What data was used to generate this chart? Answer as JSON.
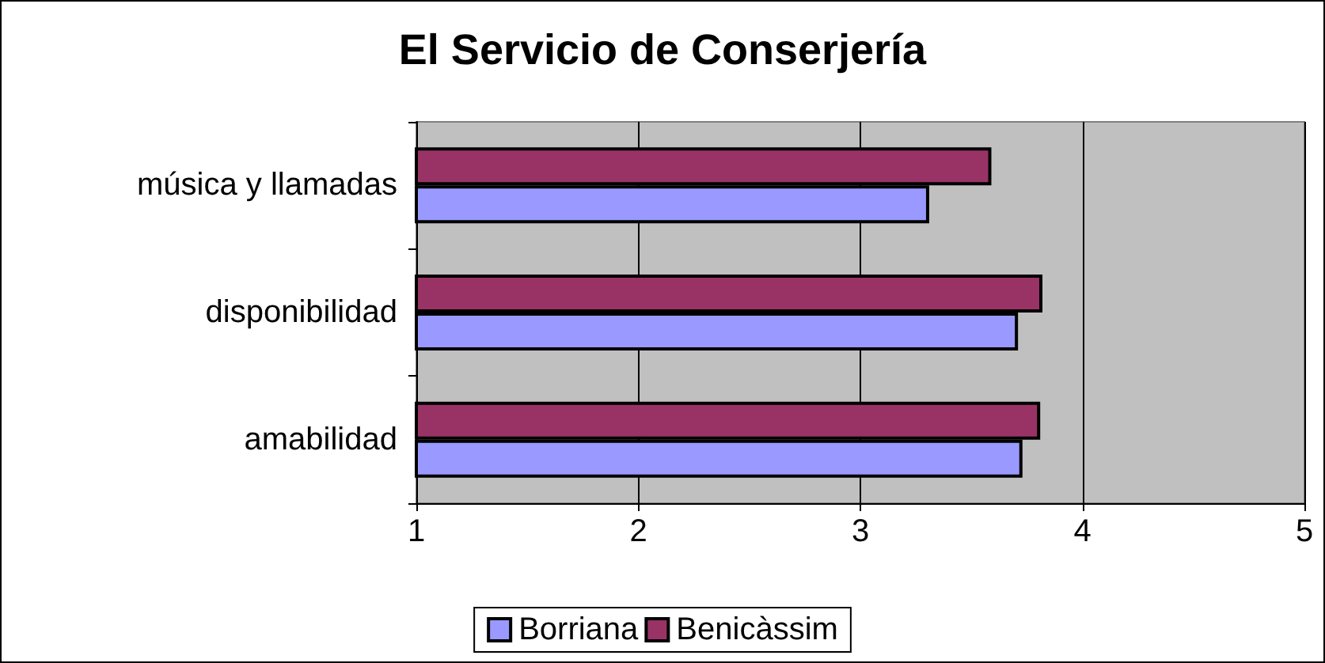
{
  "chart_data": {
    "type": "bar",
    "orientation": "horizontal",
    "title": "El Servicio de Conserjería",
    "categories": [
      "música y llamadas",
      "disponibilidad",
      "amabilidad"
    ],
    "series": [
      {
        "name": "Borriana",
        "color": "#9999ff",
        "values": [
          3.31,
          3.71,
          3.73
        ]
      },
      {
        "name": "Benicàssim",
        "color": "#993366",
        "values": [
          3.59,
          3.82,
          3.81
        ]
      }
    ],
    "xlim": [
      1,
      5
    ],
    "xticks": [
      1,
      2,
      3,
      4,
      5
    ],
    "grid": "x",
    "legend": "bottom"
  }
}
